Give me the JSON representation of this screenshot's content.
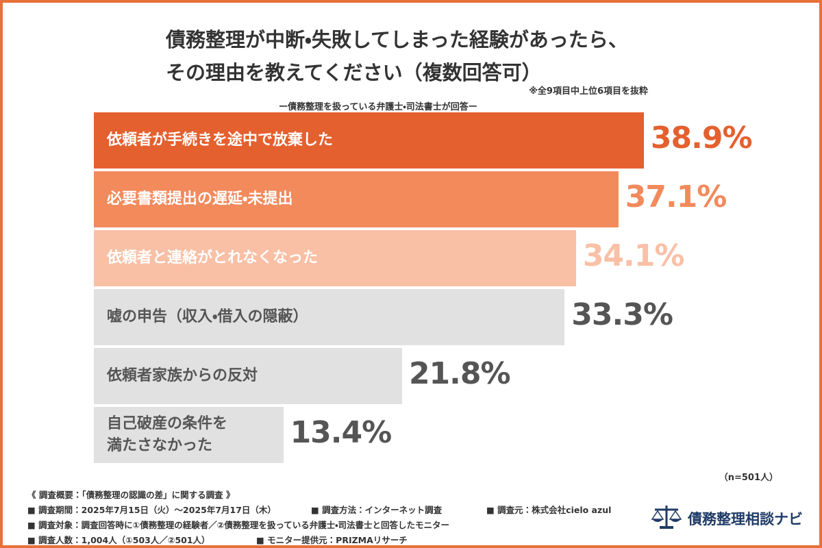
{
  "chart_data": {
    "type": "bar",
    "orientation": "horizontal",
    "title": "債務整理が中断・失敗してしまった経験があったら、\nその理由を教えてください（複数回答可）",
    "annotations": [
      "※全9項目中上位6項目を抜粋",
      "（n=501人）"
    ],
    "subtitle": "ー債務整理を扱っている弁護士・司法書士が回答ー",
    "categories": [
      "依頼者が手続きを途中で放棄した",
      "必要書類提出の遅延・未提出",
      "依頼者と連絡がとれなくなった",
      "嘘の申告（収入・借入の隠蔽）",
      "依頼者家族からの反対",
      "自己破産の条件を\n満たさなかった"
    ],
    "values": [
      38.9,
      37.1,
      34.1,
      33.3,
      21.8,
      13.4
    ],
    "value_labels": [
      "38.9%",
      "37.1%",
      "34.1%",
      "33.3%",
      "21.8%",
      "13.4%"
    ],
    "colors": [
      "#e4602e",
      "#f28a5c",
      "#f9c0a6",
      "#e1e1e1",
      "#e1e1e1",
      "#e1e1e1"
    ],
    "label_colors": [
      "#ffffff",
      "#ffffff",
      "#ffffff",
      "#555555",
      "#555555",
      "#555555"
    ],
    "value_label_colors": [
      "#e4602e",
      "#f28a5c",
      "#f9c0a6",
      "#555555",
      "#555555",
      "#555555"
    ]
  },
  "footer": {
    "heading": "《 調査概要：「債務整理の認識の差」に関する調査 》",
    "lines": [
      [
        "■ 調査期間：2025年7月15日（火）～2025年7月17日（木）",
        "■ 調査方法：インターネット調査",
        "■ 調査元：株式会社cielo azul"
      ],
      [
        "■ 調査対象：調査回答時に①債務整理の経験者／②債務整理を扱っている弁護士・司法書士と回答したモニター"
      ],
      [
        "■ 調査人数：1,004人（①503人／②501人）",
        "■ モニター提供元：PRIZMAリサーチ"
      ]
    ]
  },
  "logo": {
    "text": "債務整理相談ナビ"
  }
}
